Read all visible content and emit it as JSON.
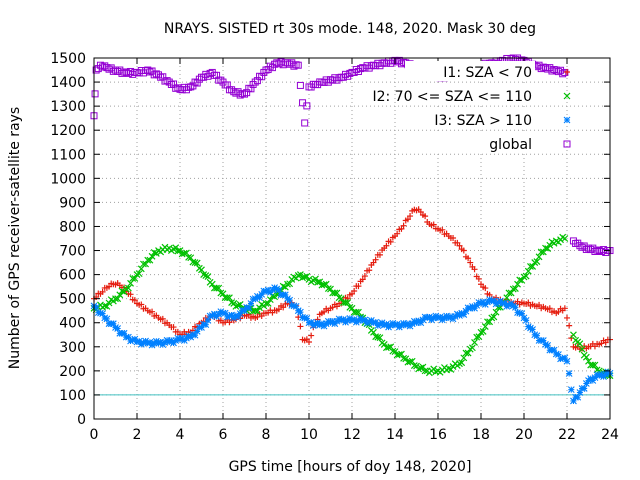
{
  "chart_data": {
    "type": "scatter",
    "title": "NRAYS. SISTED rt 30s mode. 148, 2020. Mask 30 deg",
    "xlabel": "GPS time [hours of doy 148, 2020]",
    "ylabel": "Number of GPS receiver-satellite rays",
    "xlim": [
      0,
      24
    ],
    "ylim": [
      0,
      1500
    ],
    "xticks": [
      0,
      2,
      4,
      6,
      8,
      10,
      12,
      14,
      16,
      18,
      20,
      22,
      24
    ],
    "yticks": [
      0,
      100,
      200,
      300,
      400,
      500,
      600,
      700,
      800,
      900,
      1000,
      1100,
      1200,
      1300,
      1400,
      1500
    ],
    "grid": true,
    "legend_position": "top-right",
    "reference_line": {
      "y": 100,
      "color": "#40c0c0"
    },
    "series": [
      {
        "name": "I1: SZA < 70",
        "legend_label": "I1: SZA < 70",
        "marker": "+",
        "color": "#e51e10",
        "x": [
          0,
          0.3,
          0.6,
          0.9,
          1.2,
          1.5,
          2,
          2.5,
          3,
          3.5,
          4,
          4.5,
          5,
          5.5,
          6,
          6.5,
          7,
          7.5,
          8,
          8.5,
          9,
          9.4,
          9.7,
          10,
          10.3,
          10.6,
          11,
          11.5,
          12,
          12.5,
          13,
          13.5,
          14,
          14.3,
          14.6,
          14.9,
          15.2,
          15.6,
          16,
          16.5,
          17,
          17.5,
          18,
          18.5,
          19,
          19.5,
          20,
          20.5,
          21,
          21.5,
          21.9,
          22.3,
          22.6,
          23,
          23.5,
          24
        ],
        "y": [
          500,
          520,
          545,
          560,
          555,
          530,
          480,
          450,
          420,
          390,
          350,
          360,
          400,
          430,
          400,
          410,
          430,
          420,
          440,
          450,
          480,
          470,
          330,
          320,
          400,
          440,
          460,
          480,
          520,
          580,
          650,
          710,
          760,
          790,
          830,
          870,
          860,
          810,
          790,
          760,
          720,
          650,
          560,
          500,
          490,
          480,
          480,
          470,
          460,
          440,
          460,
          300,
          290,
          300,
          310,
          330
        ]
      },
      {
        "name": "I2: 70 <= SZA <= 110",
        "legend_label": "I2: 70 <= SZA <= 110",
        "marker": "x",
        "color": "#00c000",
        "x": [
          0,
          0.5,
          1,
          1.5,
          2,
          2.5,
          3,
          3.5,
          4,
          4.5,
          5,
          5.5,
          6,
          6.5,
          7,
          7.5,
          8,
          8.5,
          9,
          9.3,
          9.6,
          10,
          10.5,
          11,
          11.5,
          12,
          12.5,
          13,
          13.5,
          14,
          14.5,
          15,
          15.5,
          16,
          16.5,
          17,
          17.5,
          18,
          18.5,
          19,
          19.5,
          20,
          20.5,
          21,
          21.5,
          21.9,
          22.3,
          22.7,
          23,
          23.5,
          24
        ],
        "y": [
          460,
          470,
          500,
          540,
          600,
          660,
          700,
          710,
          700,
          670,
          620,
          560,
          520,
          480,
          460,
          450,
          480,
          520,
          560,
          590,
          600,
          580,
          570,
          540,
          500,
          460,
          420,
          360,
          310,
          280,
          250,
          220,
          200,
          200,
          210,
          230,
          290,
          360,
          420,
          480,
          540,
          590,
          650,
          710,
          740,
          750,
          350,
          290,
          240,
          200,
          180
        ]
      },
      {
        "name": "I3: SZA > 110",
        "legend_label": "I3: SZA > 110",
        "marker": "*",
        "color": "#0080ff",
        "x": [
          0,
          0.5,
          1,
          1.5,
          2,
          2.5,
          3,
          3.5,
          4,
          4.5,
          5,
          5.5,
          6,
          6.5,
          7,
          7.5,
          8,
          8.5,
          9,
          9.5,
          10,
          10.5,
          11,
          11.5,
          12,
          12.5,
          13,
          13.5,
          14,
          14.5,
          15,
          15.5,
          16,
          16.5,
          17,
          17.5,
          18,
          18.5,
          19,
          19.5,
          20,
          20.5,
          21,
          21.5,
          22,
          22.3,
          22.6,
          23,
          23.5,
          24
        ],
        "y": [
          470,
          420,
          380,
          340,
          320,
          315,
          315,
          320,
          330,
          340,
          380,
          430,
          440,
          420,
          450,
          500,
          530,
          540,
          500,
          450,
          400,
          390,
          400,
          410,
          410,
          410,
          400,
          390,
          390,
          390,
          400,
          420,
          420,
          420,
          430,
          460,
          480,
          490,
          480,
          470,
          420,
          350,
          310,
          270,
          240,
          75,
          110,
          160,
          180,
          190
        ]
      },
      {
        "name": "global",
        "legend_label": "global",
        "marker": "square",
        "color": "#9400d3",
        "x": [
          0,
          0.1,
          0.3,
          0.6,
          1,
          1.5,
          2,
          2.5,
          3,
          3.5,
          4,
          4.5,
          5,
          5.5,
          6,
          6.5,
          7,
          7.5,
          8,
          8.5,
          9,
          9.5,
          9.8,
          10,
          10.3,
          10.6,
          11,
          11.5,
          12,
          12.5,
          13,
          13.5,
          14,
          14.5,
          15,
          15.5,
          16,
          16.5,
          17,
          17.5,
          18,
          18.5,
          19,
          19.5,
          20,
          20.5,
          21,
          21.5,
          21.9,
          22.3,
          22.6,
          23,
          23.5,
          24
        ],
        "y": [
          1260,
          1450,
          1470,
          1460,
          1450,
          1440,
          1440,
          1450,
          1430,
          1400,
          1370,
          1380,
          1420,
          1440,
          1400,
          1360,
          1350,
          1400,
          1450,
          1480,
          1480,
          1470,
          1230,
          1380,
          1390,
          1400,
          1410,
          1420,
          1440,
          1460,
          1470,
          1480,
          1490,
          1480,
          1460,
          1450,
          1420,
          1430,
          1450,
          1460,
          1470,
          1480,
          1490,
          1500,
          1490,
          1470,
          1460,
          1450,
          1440,
          740,
          720,
          710,
          700,
          700
        ]
      }
    ]
  }
}
